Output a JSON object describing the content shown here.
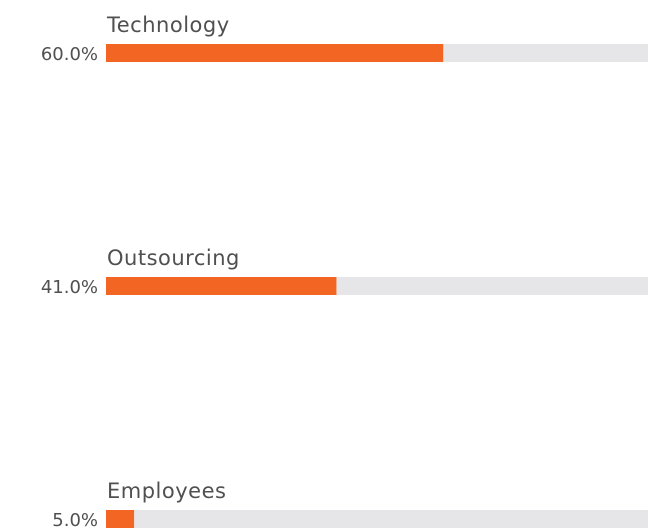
{
  "chart_data": {
    "type": "bar",
    "orientation": "horizontal",
    "categories": [
      "Technology",
      "Outsourcing",
      "Employees"
    ],
    "values": [
      60,
      41,
      5
    ],
    "value_labels": [
      "60.0%",
      "41.0%",
      "5.0%"
    ],
    "color": "#f26522",
    "xlim": [
      0,
      100
    ]
  }
}
